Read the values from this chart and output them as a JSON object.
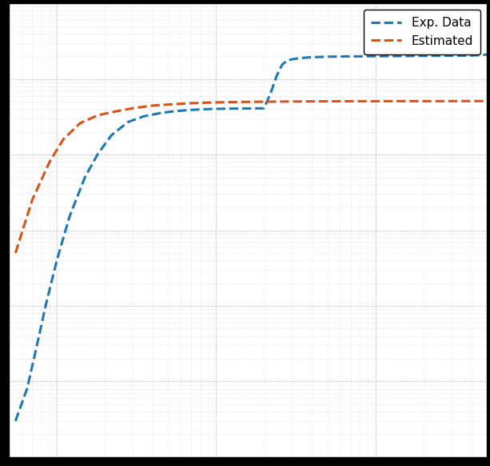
{
  "legend": [
    "Exp. Data",
    "Estimated"
  ],
  "line_colors": [
    "#1f77b4",
    "#d95319"
  ],
  "xlim": [
    0.5,
    500
  ],
  "ylim": [
    1e-10,
    0.0001
  ],
  "exp_x": [
    0.55,
    0.65,
    0.75,
    0.85,
    1.0,
    1.2,
    1.5,
    1.8,
    2.2,
    2.8,
    3.5,
    4.5,
    5.5,
    7.0,
    9.0,
    12.0,
    15.0,
    18.0,
    20.0,
    22.0,
    24.0,
    26.0,
    28.0,
    30.0,
    32.0,
    35.0,
    40.0,
    50.0,
    60.0,
    80.0,
    100.0,
    150.0,
    200.0,
    300.0,
    400.0,
    500.0
  ],
  "exp_y": [
    3e-10,
    8e-10,
    3e-09,
    1e-08,
    4e-08,
    1.5e-07,
    5e-07,
    1e-06,
    1.8e-06,
    2.7e-06,
    3.2e-06,
    3.55e-06,
    3.75e-06,
    3.9e-06,
    4e-06,
    4.05e-06,
    4.07e-06,
    4.08e-06,
    4.09e-06,
    6.5e-06,
    1.1e-05,
    1.55e-05,
    1.75e-05,
    1.82e-05,
    1.86e-05,
    1.9e-05,
    1.94e-05,
    1.97e-05,
    1.98e-05,
    1.99e-05,
    2e-05,
    2.01e-05,
    2.02e-05,
    2.03e-05,
    2.04e-05,
    2.1e-05
  ],
  "est_x": [
    0.55,
    0.7,
    0.9,
    1.1,
    1.4,
    1.8,
    2.3,
    3.0,
    4.0,
    5.5,
    7.0,
    9.0,
    12.0,
    16.0,
    20.0,
    28.0,
    40.0,
    60.0,
    100.0,
    160.0,
    250.0,
    400.0,
    500.0
  ],
  "est_y": [
    5e-08,
    2.5e-07,
    8e-07,
    1.6e-06,
    2.6e-06,
    3.3e-06,
    3.7e-06,
    4.1e-06,
    4.45e-06,
    4.65e-06,
    4.78e-06,
    4.87e-06,
    4.94e-06,
    4.98e-06,
    5e-06,
    5.03e-06,
    5.05e-06,
    5.07e-06,
    5.08e-06,
    5.09e-06,
    5.09e-06,
    5.1e-06,
    5.1e-06
  ]
}
